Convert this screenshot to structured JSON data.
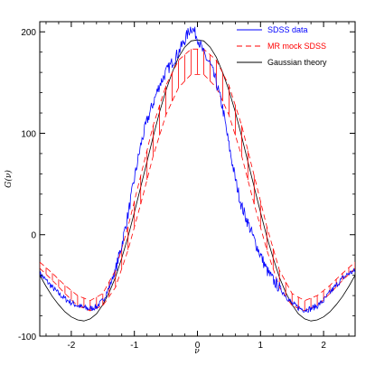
{
  "chart_data": {
    "type": "line",
    "title": "",
    "xlabel": "ν",
    "ylabel": "G(ν)",
    "xlim": [
      -2.5,
      2.5
    ],
    "ylim": [
      -100,
      210
    ],
    "x_ticks": [
      -2,
      -1,
      0,
      1,
      2
    ],
    "x_tick_labels": [
      "-2",
      "-1",
      "0",
      "1",
      "2"
    ],
    "y_ticks": [
      -100,
      0,
      100,
      200
    ],
    "y_tick_labels": [
      "-100",
      "0",
      "100",
      "200"
    ],
    "grid": false,
    "legend_position": "top-right",
    "series": [
      {
        "name": "SDSS data",
        "color": "#0000ff",
        "style": "solid-noisy",
        "x": [
          -2.5,
          -2.4,
          -2.3,
          -2.2,
          -2.1,
          -2.0,
          -1.9,
          -1.8,
          -1.7,
          -1.6,
          -1.5,
          -1.4,
          -1.3,
          -1.2,
          -1.1,
          -1.0,
          -0.9,
          -0.8,
          -0.7,
          -0.6,
          -0.5,
          -0.4,
          -0.3,
          -0.2,
          -0.1,
          0.0,
          0.1,
          0.2,
          0.3,
          0.4,
          0.5,
          0.6,
          0.7,
          0.8,
          0.9,
          1.0,
          1.1,
          1.2,
          1.3,
          1.4,
          1.5,
          1.6,
          1.7,
          1.8,
          1.9,
          2.0,
          2.1,
          2.2,
          2.3,
          2.4,
          2.5
        ],
        "y": [
          -38,
          -45,
          -52,
          -58,
          -63,
          -67,
          -70,
          -72,
          -73,
          -71,
          -65,
          -52,
          -35,
          -10,
          20,
          55,
          88,
          112,
          130,
          148,
          160,
          170,
          180,
          192,
          205,
          195,
          178,
          168,
          150,
          125,
          88,
          55,
          28,
          12,
          -5,
          -20,
          -35,
          -45,
          -52,
          -60,
          -68,
          -72,
          -74,
          -73,
          -70,
          -65,
          -57,
          -50,
          -43,
          -38,
          -36
        ]
      },
      {
        "name": "MR mock SDSS",
        "color": "#ff0000",
        "style": "dashed-band",
        "x": [
          -2.5,
          -2.3,
          -2.1,
          -1.9,
          -1.7,
          -1.5,
          -1.3,
          -1.1,
          -0.9,
          -0.7,
          -0.5,
          -0.3,
          -0.1,
          0.1,
          0.3,
          0.5,
          0.7,
          0.9,
          1.1,
          1.3,
          1.5,
          1.7,
          1.9,
          2.1,
          2.3,
          2.5
        ],
        "upper": [
          -27,
          -38,
          -50,
          -60,
          -65,
          -58,
          -35,
          8,
          58,
          108,
          147,
          172,
          183,
          183,
          172,
          147,
          108,
          58,
          8,
          -35,
          -58,
          -65,
          -60,
          -50,
          -38,
          -27
        ],
        "lower": [
          -33,
          -45,
          -58,
          -70,
          -75,
          -70,
          -52,
          -15,
          30,
          78,
          118,
          145,
          158,
          158,
          145,
          118,
          78,
          30,
          -15,
          -52,
          -70,
          -75,
          -70,
          -58,
          -45,
          -33
        ]
      },
      {
        "name": "Gaussian theory",
        "color": "#000000",
        "style": "solid",
        "x": [
          -2.5,
          -2.4,
          -2.3,
          -2.2,
          -2.1,
          -2.0,
          -1.9,
          -1.8,
          -1.7,
          -1.6,
          -1.5,
          -1.4,
          -1.3,
          -1.2,
          -1.1,
          -1.0,
          -0.9,
          -0.8,
          -0.7,
          -0.6,
          -0.5,
          -0.4,
          -0.3,
          -0.2,
          -0.1,
          0.0,
          0.1,
          0.2,
          0.3,
          0.4,
          0.5,
          0.6,
          0.7,
          0.8,
          0.9,
          1.0,
          1.1,
          1.2,
          1.3,
          1.4,
          1.5,
          1.6,
          1.7,
          1.8,
          1.9,
          2.0,
          2.1,
          2.2,
          2.3,
          2.4,
          2.5
        ],
        "y": [
          -40,
          -51,
          -61,
          -69,
          -76,
          -81,
          -84,
          -85,
          -83,
          -78,
          -69,
          -57,
          -42,
          -23,
          -2,
          22,
          47,
          72,
          97,
          121,
          142,
          160,
          175,
          185,
          191,
          192,
          191,
          185,
          175,
          160,
          142,
          121,
          97,
          72,
          47,
          22,
          -2,
          -23,
          -42,
          -57,
          -69,
          -78,
          -83,
          -85,
          -84,
          -81,
          -76,
          -69,
          -61,
          -51,
          -40
        ]
      }
    ]
  }
}
